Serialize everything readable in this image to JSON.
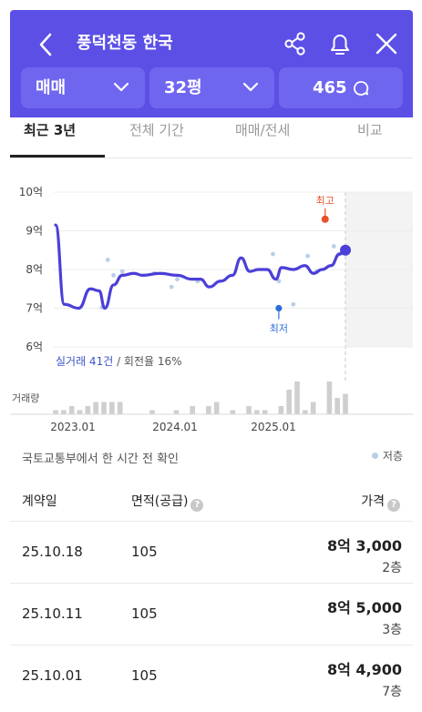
{
  "header": {
    "title": "풍덕천동 한국",
    "trade_type": "매매",
    "size": "32평",
    "comments": "465"
  },
  "tabs": [
    "최근 3년",
    "전체 기간",
    "매매/전세",
    "비교"
  ],
  "chart_data": {
    "type": "line",
    "y_ticks": [
      "10억",
      "9억",
      "8억",
      "7억",
      "6억"
    ],
    "ylim": [
      6,
      10
    ],
    "x_ticks": [
      "2023.01",
      "2024.01",
      "2025.01"
    ],
    "xlim": [
      "2022.10",
      "2025.12"
    ],
    "series": [
      {
        "values": [
          [
            0.0,
            9.15
          ],
          [
            0.03,
            7.1
          ],
          [
            0.08,
            7.0
          ],
          [
            0.12,
            7.5
          ],
          [
            0.15,
            7.45
          ],
          [
            0.17,
            7.0
          ],
          [
            0.2,
            7.6
          ],
          [
            0.23,
            7.85
          ],
          [
            0.27,
            7.9
          ],
          [
            0.3,
            7.85
          ],
          [
            0.36,
            7.9
          ],
          [
            0.42,
            7.85
          ],
          [
            0.47,
            7.75
          ],
          [
            0.5,
            7.75
          ],
          [
            0.53,
            7.55
          ],
          [
            0.57,
            7.7
          ],
          [
            0.61,
            7.85
          ],
          [
            0.64,
            8.3
          ],
          [
            0.67,
            7.95
          ],
          [
            0.7,
            8.0
          ],
          [
            0.73,
            8.0
          ],
          [
            0.76,
            7.75
          ],
          [
            0.78,
            8.05
          ],
          [
            0.82,
            8.0
          ],
          [
            0.86,
            8.1
          ],
          [
            0.89,
            7.9
          ],
          [
            0.92,
            8.0
          ],
          [
            0.95,
            8.1
          ],
          [
            0.98,
            8.4
          ],
          [
            1.0,
            8.5
          ]
        ]
      }
    ],
    "scatter_points": [
      [
        0.16,
        7.02
      ],
      [
        0.18,
        8.25
      ],
      [
        0.2,
        7.85
      ],
      [
        0.23,
        7.95
      ],
      [
        0.34,
        7.9
      ],
      [
        0.4,
        7.55
      ],
      [
        0.42,
        7.75
      ],
      [
        0.49,
        7.7
      ],
      [
        0.75,
        8.4
      ],
      [
        0.77,
        7.7
      ],
      [
        0.82,
        7.1
      ],
      [
        0.87,
        8.35
      ],
      [
        0.9,
        7.95
      ],
      [
        0.96,
        8.6
      ],
      [
        0.98,
        8.4
      ]
    ],
    "high_label": "최고",
    "high_value": 9.3,
    "low_label": "최저",
    "low_value": 7.0,
    "last_value": 8.5,
    "volume_label": "거래량",
    "volume": [
      1,
      1,
      2,
      1,
      2,
      3,
      3,
      3,
      3,
      0,
      0,
      0,
      1,
      0,
      0,
      1,
      0,
      2,
      0,
      2,
      3,
      0,
      1,
      0,
      2,
      1,
      1,
      0,
      2,
      6,
      8,
      1,
      3,
      0,
      8,
      4,
      5
    ]
  },
  "summary": {
    "trades_label": "실거래 41건",
    "turnover_label": "/ 회전율 16%"
  },
  "source_text": "국토교통부에서 한 시간 전 확인",
  "legend_label": "저층",
  "colors": {
    "brand": "#5b4fe6",
    "line": "#4b3fd8",
    "high": "#e8522a",
    "low": "#2b6fd6",
    "scatter": "#b8cfe8"
  },
  "table": {
    "headers": {
      "date": "계약일",
      "area": "면적(공급)",
      "price": "가격"
    },
    "rows": [
      {
        "date": "25.10.18",
        "area": "105",
        "price": "8억 3,000",
        "floor": "2층"
      },
      {
        "date": "25.10.11",
        "area": "105",
        "price": "8억 5,000",
        "floor": "3층"
      },
      {
        "date": "25.10.01",
        "area": "105",
        "price": "8억 4,900",
        "floor": "7층"
      }
    ]
  }
}
